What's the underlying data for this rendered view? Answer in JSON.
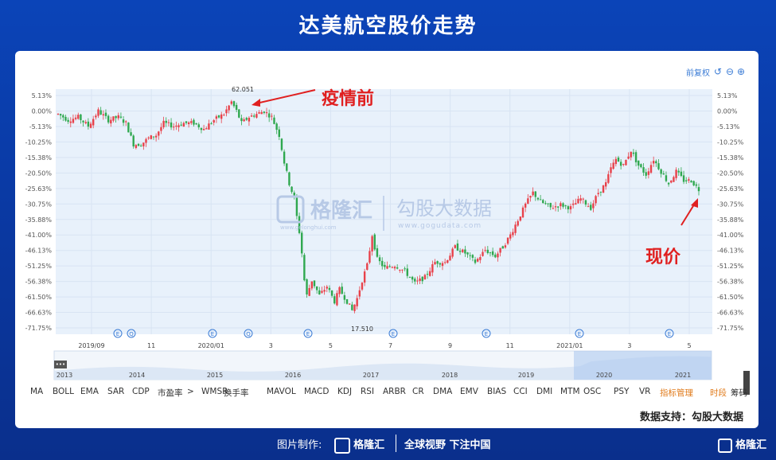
{
  "title": "达美航空股价走势",
  "controls": {
    "restore_label": "前复权"
  },
  "watermark": {
    "brand": "格隆汇",
    "brand_url": "www.gelonghui.com",
    "second": "勾股大数据",
    "second_url": "www.gogudata.com"
  },
  "annotations": {
    "pre_pandemic": "疫情前",
    "current": "现价"
  },
  "support_text": "数据支持：勾股大数据",
  "footer": {
    "made_by": "图片制作:",
    "brand": "格隆汇",
    "slogan": "全球视野 下注中国",
    "corner_brand": "格隆汇"
  },
  "indicators": [
    "MA",
    "BOLL",
    "EMA",
    "SAR",
    "CDP",
    "市盈率",
    ">",
    "WMSR",
    "换手率",
    "MAVOL",
    "MACD",
    "KDJ",
    "RSI",
    "ARBR",
    "CR",
    "DMA",
    "EMV",
    "BIAS",
    "CCI",
    "DMI",
    "MTM",
    "OSC",
    "PSY",
    "VR",
    "指标管理",
    "时段",
    "筹码"
  ],
  "colors": {
    "up": "#e8414a",
    "down": "#2fa84f",
    "accent": "#e02020",
    "grid": "#d8e4f3",
    "plot_bg": "#e8f1fb"
  },
  "chart_data": {
    "type": "candlestick",
    "y_ticks": [
      "5.13%",
      "0.00%",
      "-5.13%",
      "-10.25%",
      "-15.38%",
      "-20.50%",
      "-25.63%",
      "-30.75%",
      "-35.88%",
      "-41.00%",
      "-46.13%",
      "-51.25%",
      "-56.38%",
      "-61.50%",
      "-66.63%",
      "-71.75%"
    ],
    "ylim": [
      -71.75,
      5.13
    ],
    "x_ticks": [
      "2019/09",
      "11",
      "2020/01",
      "3",
      "5",
      "7",
      "9",
      "11",
      "2021/01",
      "3",
      "5"
    ],
    "navigator_years": [
      "2013",
      "2014",
      "2015",
      "2016",
      "2017",
      "2018",
      "2019",
      "2020",
      "2021"
    ],
    "max_label": "62.051",
    "min_label": "17.510",
    "pct_path": [
      [
        0,
        -1
      ],
      [
        4,
        -3
      ],
      [
        8,
        -2
      ],
      [
        12,
        -5
      ],
      [
        16,
        0
      ],
      [
        20,
        -3
      ],
      [
        24,
        -2
      ],
      [
        27,
        -4
      ],
      [
        30,
        -11
      ],
      [
        33,
        -11
      ],
      [
        36,
        -9
      ],
      [
        39,
        -8
      ],
      [
        42,
        -4
      ],
      [
        46,
        -5
      ],
      [
        50,
        -4
      ],
      [
        54,
        -4
      ],
      [
        58,
        -6
      ],
      [
        62,
        -3
      ],
      [
        66,
        -1
      ],
      [
        69,
        3
      ],
      [
        71,
        0
      ],
      [
        73,
        -4
      ],
      [
        76,
        -2
      ],
      [
        79,
        -1
      ],
      [
        82,
        0
      ],
      [
        85,
        -2
      ],
      [
        88,
        -8
      ],
      [
        90,
        -17
      ],
      [
        92,
        -24
      ],
      [
        94,
        -29
      ],
      [
        95,
        -35
      ],
      [
        96,
        -40
      ],
      [
        97,
        -47
      ],
      [
        98,
        -56
      ],
      [
        99,
        -61
      ],
      [
        101,
        -56
      ],
      [
        104,
        -61
      ],
      [
        107,
        -58
      ],
      [
        110,
        -63
      ],
      [
        112,
        -59
      ],
      [
        115,
        -63
      ],
      [
        117,
        -66
      ],
      [
        119,
        -62
      ],
      [
        121,
        -56
      ],
      [
        123,
        -51
      ],
      [
        125,
        -41
      ],
      [
        127,
        -49
      ],
      [
        130,
        -52
      ],
      [
        134,
        -51
      ],
      [
        138,
        -53
      ],
      [
        142,
        -57
      ],
      [
        146,
        -55
      ],
      [
        150,
        -50
      ],
      [
        154,
        -50
      ],
      [
        158,
        -45
      ],
      [
        162,
        -47
      ],
      [
        166,
        -50
      ],
      [
        170,
        -46
      ],
      [
        174,
        -48
      ],
      [
        177,
        -45
      ],
      [
        180,
        -41
      ],
      [
        183,
        -36
      ],
      [
        186,
        -31
      ],
      [
        189,
        -27
      ],
      [
        192,
        -30
      ],
      [
        196,
        -32
      ],
      [
        200,
        -31
      ],
      [
        204,
        -32
      ],
      [
        208,
        -29
      ],
      [
        212,
        -32
      ],
      [
        215,
        -27
      ],
      [
        218,
        -24
      ],
      [
        220,
        -19
      ],
      [
        222,
        -16
      ],
      [
        225,
        -18
      ],
      [
        228,
        -13
      ],
      [
        231,
        -18
      ],
      [
        234,
        -21
      ],
      [
        237,
        -16
      ],
      [
        240,
        -20
      ],
      [
        243,
        -24
      ],
      [
        246,
        -20
      ],
      [
        249,
        -23
      ],
      [
        252,
        -23
      ],
      [
        255,
        -26
      ]
    ],
    "n_bars": 256
  }
}
